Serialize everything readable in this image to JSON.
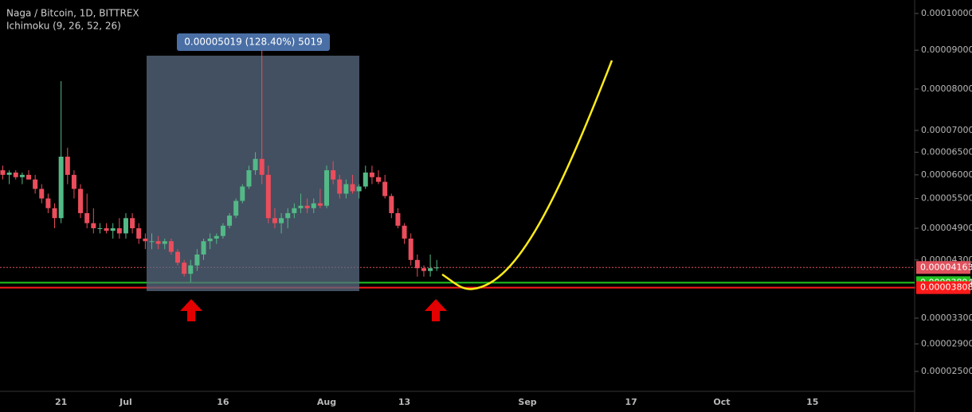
{
  "chart_data": {
    "type": "candlestick",
    "title": "Naga / Bitcoin, 1D, BITTREX",
    "subtitle": "Ichimoku (9, 26, 52, 26)",
    "annotations": [
      "0.00005019 (128.40%) 5019"
    ],
    "categories": [
      null,
      null,
      null,
      null,
      null,
      null,
      null,
      null,
      null,
      "21",
      null,
      null,
      null,
      null,
      null,
      null,
      null,
      null,
      null,
      "Jul",
      null,
      null,
      null,
      null,
      null,
      null,
      null,
      null,
      null,
      null,
      null,
      null,
      null,
      null,
      "16",
      null,
      null,
      null,
      null,
      null,
      null,
      null,
      null,
      null,
      null,
      null,
      null,
      null,
      null,
      null,
      "Aug",
      null,
      null,
      null,
      null,
      null,
      null,
      null,
      null,
      null,
      null,
      null,
      "13",
      null,
      null,
      null,
      null,
      null,
      null,
      null,
      null,
      null,
      null,
      null,
      null,
      null,
      null,
      null,
      null,
      null,
      null,
      "Sep",
      null,
      null,
      null,
      null,
      null,
      null,
      null,
      null,
      null,
      null,
      null,
      null,
      null,
      null,
      null,
      "17",
      null,
      null,
      null,
      null,
      null,
      null,
      null,
      null,
      null,
      null,
      null,
      null,
      null,
      "Oct",
      null,
      null,
      null,
      null,
      null,
      null,
      null,
      null,
      null,
      null,
      null,
      null,
      null,
      "15",
      null,
      null,
      null,
      null,
      null,
      null,
      null,
      null,
      null,
      null,
      null,
      null,
      null,
      null,
      null,
      null
    ],
    "open": [
      6.1e-05,
      6e-05,
      6.05e-05,
      5.95e-05,
      6e-05,
      5.9e-05,
      5.7e-05,
      5.5e-05,
      5.3e-05,
      5.1e-05,
      6.4e-05,
      6e-05,
      5.7e-05,
      5.2e-05,
      5e-05,
      4.9e-05,
      4.9e-05,
      4.85e-05,
      4.9e-05,
      4.8e-05,
      5.1e-05,
      4.9e-05,
      4.7e-05,
      4.65e-05,
      4.65e-05,
      4.6e-05,
      4.65e-05,
      4.45e-05,
      4.25e-05,
      4.05e-05,
      4.2e-05,
      4.4e-05,
      4.65e-05,
      4.7e-05,
      4.75e-05,
      4.95e-05,
      5.15e-05,
      5.45e-05,
      5.75e-05,
      6.1e-05,
      6.35e-05,
      6e-05,
      5.1e-05,
      5e-05,
      5.1e-05,
      5.2e-05,
      5.3e-05,
      5.35e-05,
      5.3e-05,
      5.4e-05,
      5.35e-05,
      6.1e-05,
      5.9e-05,
      5.6e-05,
      5.8e-05,
      5.65e-05,
      5.75e-05,
      6.05e-05,
      5.95e-05,
      5.85e-05,
      5.55e-05,
      5.2e-05,
      4.95e-05,
      4.7e-05,
      4.3e-05,
      4.15e-05,
      4.1e-05,
      4.15e-05,
      null,
      null,
      null,
      null,
      null,
      null,
      null,
      null,
      null,
      null,
      null,
      null,
      null,
      null,
      null,
      null,
      null,
      null,
      null,
      null,
      null,
      null,
      null,
      null,
      null,
      null,
      null,
      null,
      null,
      null,
      null,
      null,
      null,
      null,
      null,
      null,
      null,
      null,
      null,
      null,
      null,
      null,
      null,
      null,
      null,
      null,
      null,
      null,
      null,
      null,
      null,
      null,
      null,
      null,
      null,
      null,
      null,
      null,
      null,
      null,
      null,
      null,
      null,
      null,
      null,
      null,
      null,
      null,
      null,
      null,
      null,
      null,
      null,
      null
    ],
    "high": [
      6.2e-05,
      6.1e-05,
      6.1e-05,
      6.05e-05,
      6.1e-05,
      6e-05,
      5.8e-05,
      5.6e-05,
      5.4e-05,
      8.2e-05,
      6.6e-05,
      6.1e-05,
      5.8e-05,
      5.6e-05,
      5.3e-05,
      5e-05,
      5e-05,
      5e-05,
      5.1e-05,
      5.2e-05,
      5.2e-05,
      5e-05,
      4.8e-05,
      4.8e-05,
      4.75e-05,
      4.7e-05,
      4.7e-05,
      4.5e-05,
      4.3e-05,
      4.3e-05,
      4.5e-05,
      4.7e-05,
      4.8e-05,
      4.8e-05,
      5e-05,
      5.2e-05,
      5.5e-05,
      5.8e-05,
      6.2e-05,
      6.5e-05,
      9e-05,
      6.2e-05,
      5.3e-05,
      5.2e-05,
      5.3e-05,
      5.4e-05,
      5.6e-05,
      5.5e-05,
      5.5e-05,
      5.7e-05,
      6.2e-05,
      6.3e-05,
      6e-05,
      5.9e-05,
      6e-05,
      5.8e-05,
      6.2e-05,
      6.2e-05,
      6.1e-05,
      6e-05,
      5.6e-05,
      5.3e-05,
      5e-05,
      4.8e-05,
      4.4e-05,
      4.2e-05,
      4.4e-05,
      4.3e-05,
      null,
      null,
      null,
      null,
      null,
      null,
      null,
      null,
      null,
      null,
      null,
      null,
      null,
      null,
      null,
      null,
      null,
      null,
      null,
      null,
      null,
      null,
      null,
      null,
      null,
      null,
      null,
      null,
      null,
      null,
      null,
      null,
      null,
      null,
      null,
      null,
      null,
      null,
      null,
      null,
      null,
      null,
      null,
      null,
      null,
      null,
      null,
      null,
      null,
      null,
      null,
      null,
      null,
      null,
      null,
      null,
      null,
      null,
      null,
      null,
      null,
      null,
      null,
      null,
      null,
      null,
      null,
      null,
      null,
      null,
      null,
      null,
      null,
      null
    ],
    "low": [
      5.9e-05,
      5.8e-05,
      5.9e-05,
      5.8e-05,
      5.9e-05,
      5.6e-05,
      5.4e-05,
      5.2e-05,
      4.9e-05,
      5e-05,
      5.8e-05,
      5.5e-05,
      5.1e-05,
      4.9e-05,
      4.8e-05,
      4.8e-05,
      4.8e-05,
      4.7e-05,
      4.7e-05,
      4.7e-05,
      4.8e-05,
      4.6e-05,
      4.5e-05,
      4.5e-05,
      4.5e-05,
      4.5e-05,
      4.4e-05,
      4.2e-05,
      4e-05,
      3.9e-05,
      4.1e-05,
      4.3e-05,
      4.5e-05,
      4.6e-05,
      4.7e-05,
      4.9e-05,
      5.1e-05,
      5.4e-05,
      5.7e-05,
      6e-05,
      5.8e-05,
      5e-05,
      4.9e-05,
      4.8e-05,
      4.9e-05,
      5.1e-05,
      5.2e-05,
      5.2e-05,
      5.2e-05,
      5.3e-05,
      5.3e-05,
      5.8e-05,
      5.5e-05,
      5.5e-05,
      5.6e-05,
      5.5e-05,
      5.7e-05,
      5.8e-05,
      5.8e-05,
      5.5e-05,
      5.1e-05,
      4.9e-05,
      4.6e-05,
      4.2e-05,
      4e-05,
      4e-05,
      4e-05,
      4.1e-05,
      null,
      null,
      null,
      null,
      null,
      null,
      null,
      null,
      null,
      null,
      null,
      null,
      null,
      null,
      null,
      null,
      null,
      null,
      null,
      null,
      null,
      null,
      null,
      null,
      null,
      null,
      null,
      null,
      null,
      null,
      null,
      null,
      null,
      null,
      null,
      null,
      null,
      null,
      null,
      null,
      null,
      null,
      null,
      null,
      null,
      null,
      null,
      null,
      null,
      null,
      null,
      null,
      null,
      null,
      null,
      null,
      null,
      null,
      null,
      null,
      null,
      null,
      null,
      null,
      null,
      null,
      null,
      null,
      null,
      null,
      null,
      null,
      null,
      null
    ],
    "close": [
      6e-05,
      6.05e-05,
      5.95e-05,
      6e-05,
      5.9e-05,
      5.7e-05,
      5.5e-05,
      5.3e-05,
      5.1e-05,
      6.4e-05,
      6e-05,
      5.7e-05,
      5.2e-05,
      5e-05,
      4.9e-05,
      4.9e-05,
      4.85e-05,
      4.9e-05,
      4.8e-05,
      5.1e-05,
      4.9e-05,
      4.7e-05,
      4.65e-05,
      4.65e-05,
      4.6e-05,
      4.65e-05,
      4.45e-05,
      4.25e-05,
      4.05e-05,
      4.2e-05,
      4.4e-05,
      4.65e-05,
      4.7e-05,
      4.75e-05,
      4.95e-05,
      5.15e-05,
      5.45e-05,
      5.75e-05,
      6.1e-05,
      6.35e-05,
      6e-05,
      5.1e-05,
      5e-05,
      5.1e-05,
      5.2e-05,
      5.3e-05,
      5.35e-05,
      5.3e-05,
      5.4e-05,
      5.35e-05,
      6.1e-05,
      5.9e-05,
      5.6e-05,
      5.8e-05,
      5.65e-05,
      5.75e-05,
      6.05e-05,
      5.95e-05,
      5.85e-05,
      5.55e-05,
      5.2e-05,
      4.95e-05,
      4.7e-05,
      4.3e-05,
      4.15e-05,
      4.1e-05,
      4.15e-05,
      4.163e-05,
      null,
      null,
      null,
      null,
      null,
      null,
      null,
      null,
      null,
      null,
      null,
      null,
      null,
      null,
      null,
      null,
      null,
      null,
      null,
      null,
      null,
      null,
      null,
      null,
      null,
      null,
      null,
      null,
      null,
      null,
      null,
      null,
      null,
      null,
      null,
      null,
      null,
      null,
      null,
      null,
      null,
      null,
      null,
      null,
      null,
      null,
      null,
      null,
      null,
      null,
      null,
      null,
      null,
      null,
      null,
      null,
      null,
      null,
      null,
      null,
      null,
      null,
      null,
      null,
      null,
      null,
      null,
      null,
      null,
      null,
      null,
      null,
      null,
      null
    ],
    "up_color": "#53b987",
    "down_color": "#eb4d5c",
    "ylim": [
      2.23e-05,
      0.0001038
    ],
    "yticks": [
      {
        "value": 0.0001,
        "label": "0.00010000"
      },
      {
        "value": 9e-05,
        "label": "0.00009000"
      },
      {
        "value": 8e-05,
        "label": "0.00008000"
      },
      {
        "value": 7e-05,
        "label": "0.00007000"
      },
      {
        "value": 6.5e-05,
        "label": "0.00006500"
      },
      {
        "value": 6e-05,
        "label": "0.00006000"
      },
      {
        "value": 5.5e-05,
        "label": "0.00005500"
      },
      {
        "value": 4.9e-05,
        "label": "0.00004900"
      },
      {
        "value": 4.3e-05,
        "label": "0.00004300"
      },
      {
        "value": 3.3e-05,
        "label": "0.00003300"
      },
      {
        "value": 2.9e-05,
        "label": "0.00002900"
      },
      {
        "value": 2.5e-05,
        "label": "0.00002500"
      }
    ],
    "price_lines": [
      {
        "value": 4.163e-05,
        "color": "#e0525e"
      },
      {
        "value": 3.894e-05,
        "color": "#22c322"
      },
      {
        "value": 3.808e-05,
        "color": "#ff1a1a"
      }
    ]
  }
}
